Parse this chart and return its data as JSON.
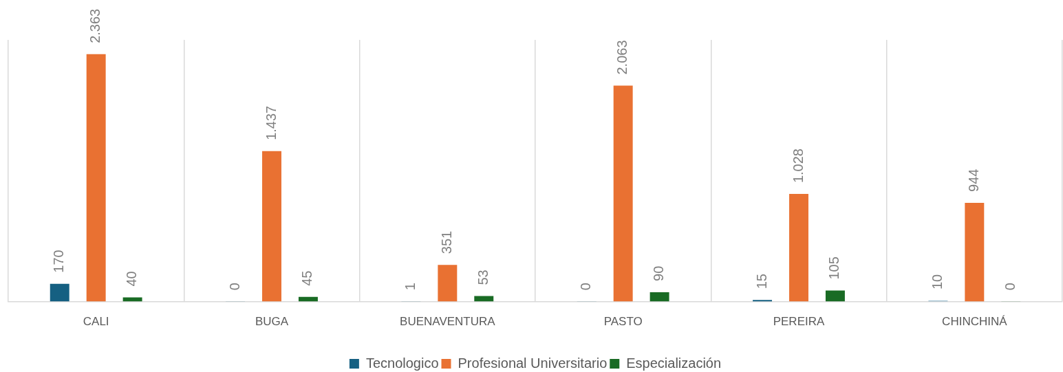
{
  "chart_data": {
    "type": "bar",
    "categories": [
      "CALI",
      "BUGA",
      "BUENAVENTURA",
      "PASTO",
      "PEREIRA",
      "CHINCHINÁ"
    ],
    "series": [
      {
        "name": "Tecnologico",
        "color": "#156082",
        "colors": [
          "#156082",
          "#156082",
          "#156082",
          "#156082",
          "#156082",
          "#9dbfcf"
        ],
        "values": [
          170,
          0,
          1,
          0,
          15,
          10
        ],
        "value_labels": [
          "170",
          "0",
          "1",
          "0",
          "15",
          "10"
        ]
      },
      {
        "name": "Profesional Universitario",
        "color": "#e97132",
        "values": [
          2363,
          1437,
          351,
          2063,
          1028,
          944
        ],
        "value_labels": [
          "2.363",
          "1.437",
          "351",
          "2.063",
          "1.028",
          "944"
        ]
      },
      {
        "name": "Especialización",
        "color": "#196b24",
        "values": [
          40,
          45,
          53,
          90,
          105,
          0
        ],
        "value_labels": [
          "40",
          "45",
          "53",
          "90",
          "105",
          "0"
        ]
      }
    ],
    "ylim": [
      0,
      2500
    ],
    "tick_labels": "x",
    "grid": "x",
    "legend": "bottom"
  }
}
